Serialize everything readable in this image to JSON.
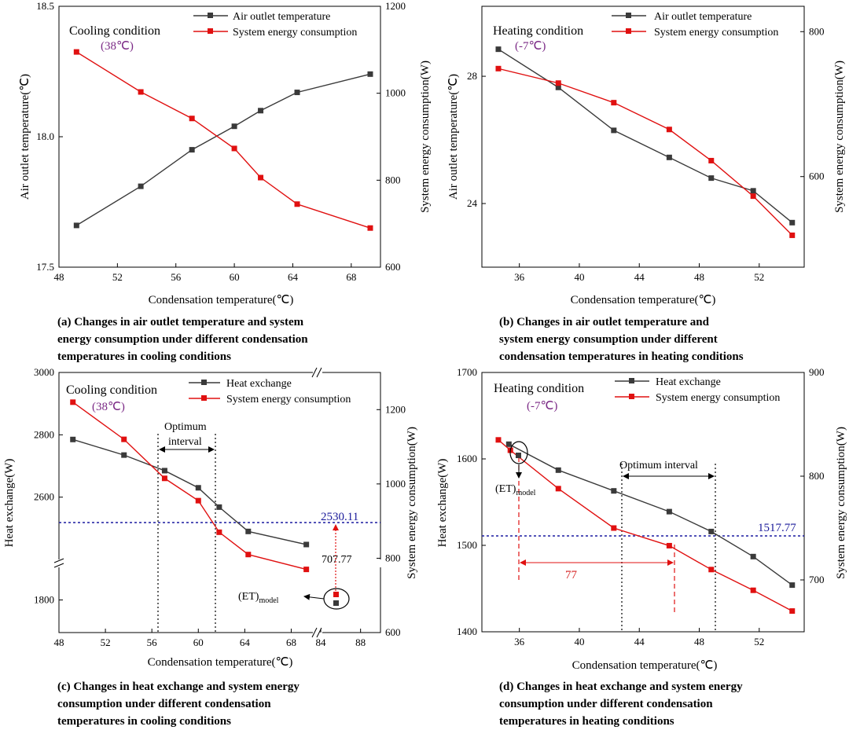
{
  "colors": {
    "black_series": "#3a3a3a",
    "red_series": "#e01010",
    "blue_ref": "#1a1aa0",
    "purple": "#7b2a86"
  },
  "chart_data": [
    {
      "id": "a",
      "type": "line",
      "caption": [
        "(a) Changes in air outlet temperature and system",
        "energy consumption under different condensation",
        "temperatures in cooling conditions"
      ],
      "condition": "Cooling condition",
      "condition_sub": "(38℃)",
      "xlabel": "Condensation temperature(℃)",
      "ylabel_left": "Air outlet temperature(℃)",
      "ylabel_right": "System energy consumption(W)",
      "xlim": [
        48,
        70
      ],
      "xticks": [
        "48",
        "52",
        "56",
        "60",
        "64",
        "68"
      ],
      "ylim_left": [
        17.5,
        18.5
      ],
      "yticks_left": [
        "17.5",
        "18.0",
        "18.5"
      ],
      "ylim_right": [
        600,
        1200
      ],
      "yticks_right": [
        "600",
        "800",
        "1000",
        "1200"
      ],
      "legend": [
        "Air outlet temperature",
        "System energy consumption"
      ],
      "series": [
        {
          "name": "Air outlet temperature",
          "axis": "left",
          "x": [
            49.2,
            53.6,
            57.1,
            60.0,
            61.8,
            64.3,
            69.3
          ],
          "values": [
            17.66,
            17.81,
            17.95,
            18.04,
            18.1,
            18.17,
            18.24
          ]
        },
        {
          "name": "System energy consumption",
          "axis": "right",
          "x": [
            49.2,
            53.6,
            57.1,
            60.0,
            61.8,
            64.3,
            69.3
          ],
          "values": [
            1095,
            1003,
            942,
            873,
            806,
            745,
            690
          ]
        }
      ]
    },
    {
      "id": "b",
      "type": "line",
      "caption": [
        "(b) Changes in air outlet temperature and",
        "system energy consumption under different",
        "condensation temperatures in heating conditions"
      ],
      "condition": "Heating condition",
      "condition_sub": "(-7℃)",
      "xlabel": "Condensation temperature(℃)",
      "ylabel_left": "Air outlet temperature(℃)",
      "ylabel_right": "System energy consumption(W)",
      "xlim": [
        33.5,
        55
      ],
      "xticks": [
        "36",
        "40",
        "44",
        "48",
        "52"
      ],
      "ylim_left": [
        22,
        30.2
      ],
      "yticks_left": [
        "24",
        "28"
      ],
      "ylim_right": [
        475,
        835
      ],
      "yticks_right": [
        "600",
        "800"
      ],
      "legend": [
        "Air outlet temperature",
        "System energy consumption"
      ],
      "series": [
        {
          "name": "Air outlet temperature",
          "axis": "left",
          "x": [
            34.6,
            38.6,
            42.3,
            46.0,
            48.8,
            51.6,
            54.2
          ],
          "values": [
            28.85,
            27.65,
            26.3,
            25.45,
            24.8,
            24.4,
            23.4
          ]
        },
        {
          "name": "System energy consumption",
          "axis": "right",
          "x": [
            34.6,
            38.6,
            42.3,
            46.0,
            48.8,
            51.6,
            54.2
          ],
          "values": [
            749,
            729,
            702,
            665,
            622,
            573,
            519
          ]
        }
      ]
    },
    {
      "id": "c",
      "type": "line",
      "caption": [
        "(c) Changes in heat exchange and system energy",
        "consumption under different condensation",
        "temperatures in cooling conditions"
      ],
      "condition": "Cooling condition",
      "condition_sub": "(38℃)",
      "xlabel": "Condensation temperature(℃)",
      "ylabel_left": "Heat exchange(W)",
      "ylabel_right": "System energy consumption(W)",
      "xticks": [
        "48",
        "52",
        "56",
        "60",
        "64",
        "68",
        "88"
      ],
      "xticks_extra": "84",
      "yticks_left": [
        "1800",
        "2600",
        "2800",
        "3000"
      ],
      "yticks_right": [
        "600",
        "800",
        "1000",
        "1200"
      ],
      "legend": [
        "Heat exchange",
        "System energy consumption"
      ],
      "optimum_label": [
        "Optimum",
        "interval"
      ],
      "ref_value": "2530.11",
      "ref_value2": "707.77",
      "model_label": "(ET)",
      "model_sub": "model",
      "series": [
        {
          "name": "Heat exchange",
          "axis": "left",
          "x": [
            49.2,
            53.6,
            57.1,
            60.0,
            61.8,
            64.3,
            69.3
          ],
          "values": [
            2785,
            2735,
            2685,
            2630,
            2568,
            2490,
            2448
          ]
        },
        {
          "name": "System energy consumption",
          "axis": "right",
          "x": [
            49.2,
            53.6,
            57.1,
            60.0,
            61.8,
            64.3,
            69.3
          ],
          "values": [
            1220,
            1120,
            1015,
            955,
            870,
            810,
            770
          ]
        }
      ]
    },
    {
      "id": "d",
      "type": "line",
      "caption": [
        "(d) Changes in heat exchange and system energy",
        "consumption under different condensation",
        "temperatures in heating conditions"
      ],
      "condition": "Heating condition",
      "condition_sub": "(-7℃)",
      "xlabel": "Condensation temperature(℃)",
      "ylabel_left": "Heat exchange(W)",
      "ylabel_right": "System energy consumption(W)",
      "xlim": [
        33.5,
        55
      ],
      "xticks": [
        "36",
        "40",
        "44",
        "48",
        "52"
      ],
      "ylim_left": [
        1400,
        1700
      ],
      "yticks_left": [
        "1400",
        "1500",
        "1600",
        "1700"
      ],
      "ylim_right": [
        650,
        900
      ],
      "yticks_right": [
        "700",
        "800",
        "900"
      ],
      "legend": [
        "Heat exchange",
        "System energy consumption"
      ],
      "optimum_label": [
        "Optimum interval"
      ],
      "ref_value": "1517.77",
      "span_label": "77",
      "model_label": "(ET)",
      "model_sub": "model",
      "series": [
        {
          "name": "Heat exchange",
          "axis": "left",
          "x": [
            35.3,
            38.6,
            42.3,
            46.0,
            48.8,
            51.6,
            54.2
          ],
          "values": [
            1617,
            1587,
            1563,
            1539,
            1516,
            1487,
            1454
          ]
        },
        {
          "name": "System energy consumption",
          "axis": "right",
          "x": [
            34.6,
            35.4,
            38.6,
            42.3,
            46.0,
            48.8,
            51.6,
            54.2
          ],
          "values": [
            835,
            825,
            788,
            750,
            733,
            710,
            690,
            670
          ]
        }
      ]
    }
  ]
}
